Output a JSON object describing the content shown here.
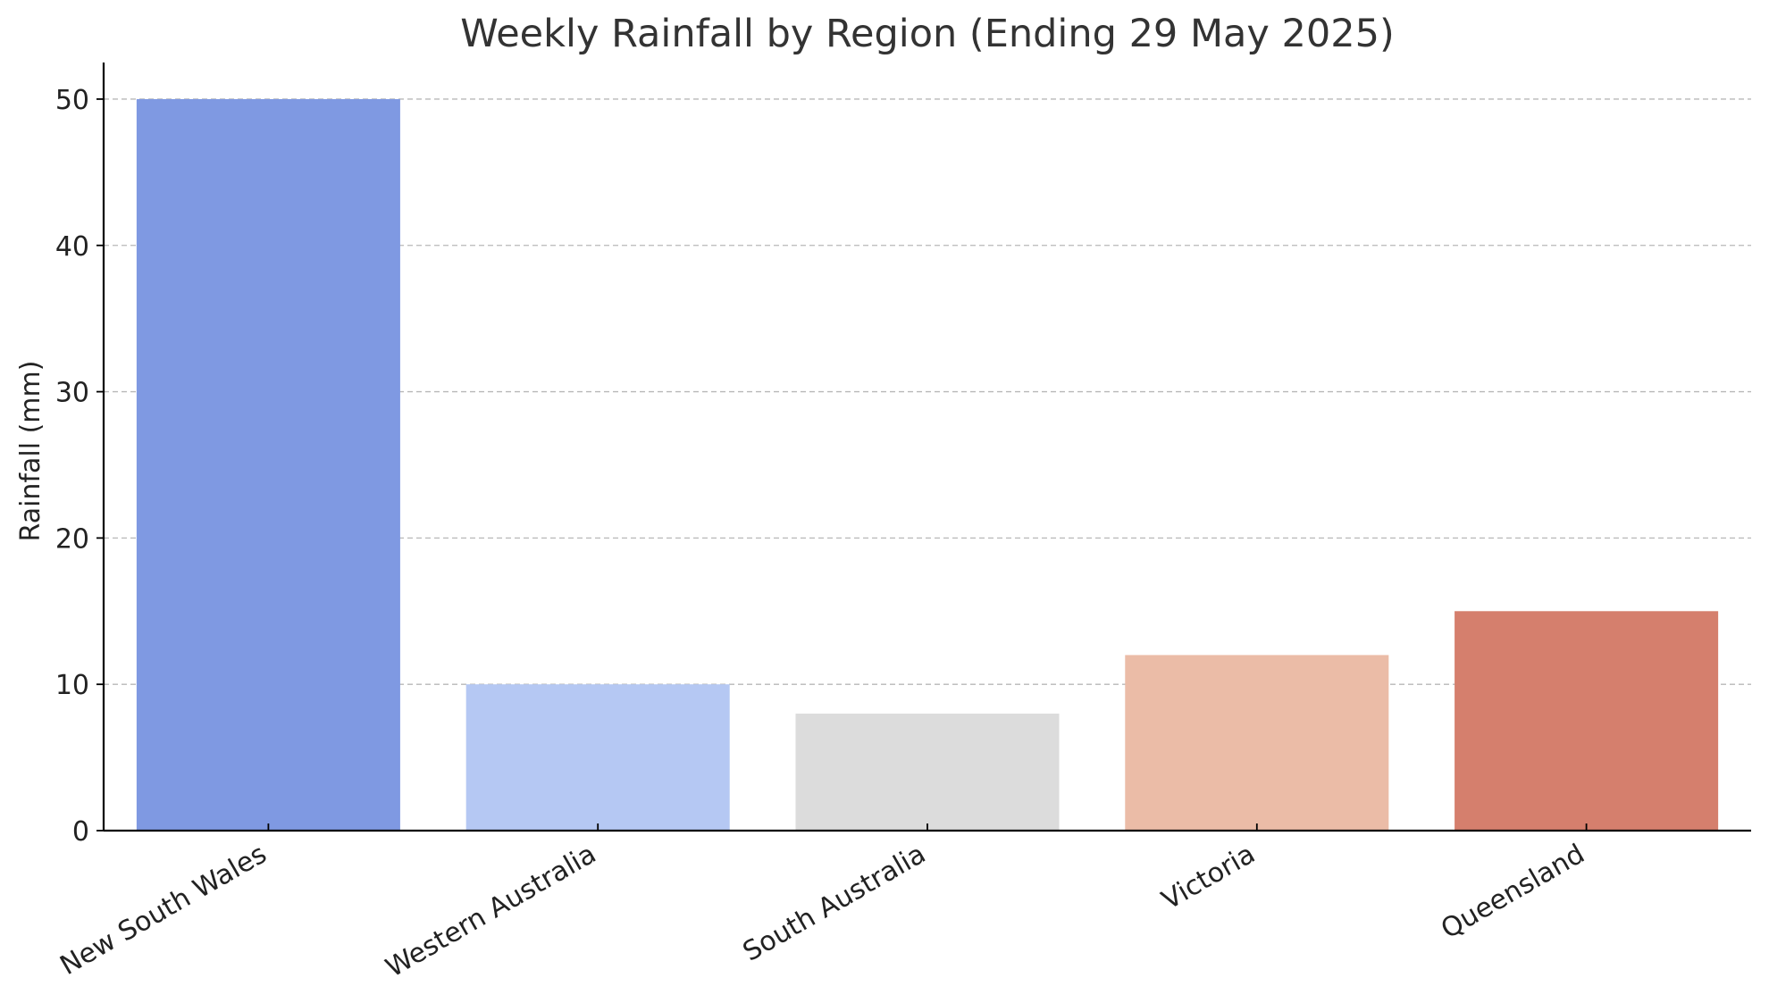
{
  "chart_data": {
    "type": "bar",
    "title": "Weekly Rainfall by Region (Ending 29 May 2025)",
    "xlabel": "",
    "ylabel": "Rainfall (mm)",
    "categories": [
      "New South Wales",
      "Western Australia",
      "South Australia",
      "Victoria",
      "Queensland"
    ],
    "values": [
      50,
      10,
      8,
      12,
      15
    ],
    "colors": [
      "#7f99e2",
      "#b5c8f3",
      "#dcdcdc",
      "#ebbca7",
      "#d57f6d"
    ],
    "ylim": [
      0,
      52.5
    ],
    "yticks": [
      0,
      10,
      20,
      30,
      40,
      50
    ],
    "grid": "y-dashed",
    "legend": "none"
  }
}
